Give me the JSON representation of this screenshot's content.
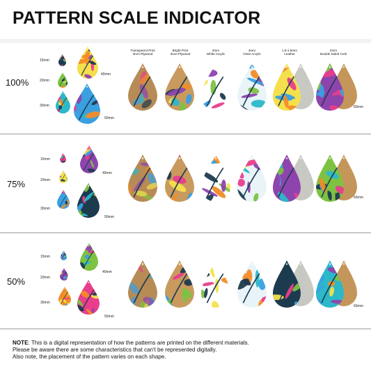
{
  "title": "PATTERN SCALE INDICATOR",
  "materials": [
    {
      "line1": "Transparent Print",
      "line2": "3mm Plywood",
      "color": "#b78b56"
    },
    {
      "line1": "Bright Print",
      "line2": "3mm Plywood",
      "color": "#c99a5e"
    },
    {
      "line1": "3mm",
      "line2": "White Acrylic",
      "color": "#ffffff"
    },
    {
      "line1": "3mm",
      "line2": "Clear Acrylic",
      "color": "#e8f4f8"
    },
    {
      "line1": "1.6-1.8mm",
      "line2": "Leather",
      "color": "#c9c9c4"
    },
    {
      "line1": "2mm",
      "line2": "Double Sided Cork",
      "color": "#c5965a"
    }
  ],
  "scales": [
    {
      "label": "100%",
      "sizes": [
        "15mm",
        "20mm",
        "30mm",
        "40mm",
        "50mm"
      ],
      "row_size": "60mm"
    },
    {
      "label": "75%",
      "sizes": [
        "15mm",
        "20mm",
        "30mm",
        "40mm",
        "50mm"
      ],
      "row_size": "60mm"
    },
    {
      "label": "50%",
      "sizes": [
        "15mm",
        "20mm",
        "30mm",
        "40mm",
        "50mm"
      ],
      "row_size": "60mm"
    }
  ],
  "note": {
    "label": "NOTE",
    "line1": ": This is a digital representation of how the patterns are printed on the different materials.",
    "line2": "Please be aware there are some characteristics that can't be represented digitally.",
    "line3": "Also note, the placement of the pattern varies on each shape."
  },
  "palette": [
    "#f4e04d",
    "#2bb8c9",
    "#e83e8c",
    "#7dc242",
    "#1d3b4f",
    "#f28c28",
    "#8e44ad",
    "#3aa0e0"
  ]
}
